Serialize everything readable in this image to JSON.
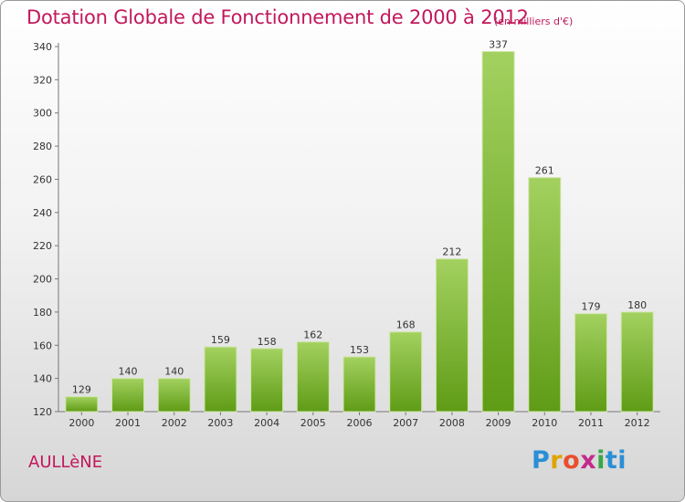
{
  "header": {
    "title": "Dotation Globale de Fonctionnement de 2000 à 2012",
    "unit": "(en milliers d'€)"
  },
  "footer": {
    "commune": "AULLèNE",
    "logo_letters": [
      "P",
      "r",
      "o",
      "x",
      "i",
      "ti"
    ]
  },
  "colors": {
    "bar_top": "#a3d160",
    "bar_bottom": "#5f9c16",
    "title": "#c2185b"
  },
  "chart_data": {
    "type": "bar",
    "title": "Dotation Globale de Fonctionnement de 2000 à 2012",
    "xlabel": "",
    "ylabel": "",
    "categories": [
      "2000",
      "2001",
      "2002",
      "2003",
      "2004",
      "2005",
      "2006",
      "2007",
      "2008",
      "2009",
      "2010",
      "2011",
      "2012"
    ],
    "values": [
      129,
      140,
      140,
      159,
      158,
      162,
      153,
      168,
      212,
      337,
      261,
      179,
      180
    ],
    "ylim": [
      120,
      340
    ],
    "yticks": [
      120,
      140,
      160,
      180,
      200,
      220,
      240,
      260,
      280,
      300,
      320,
      340
    ],
    "grid": false,
    "legend": "none"
  }
}
